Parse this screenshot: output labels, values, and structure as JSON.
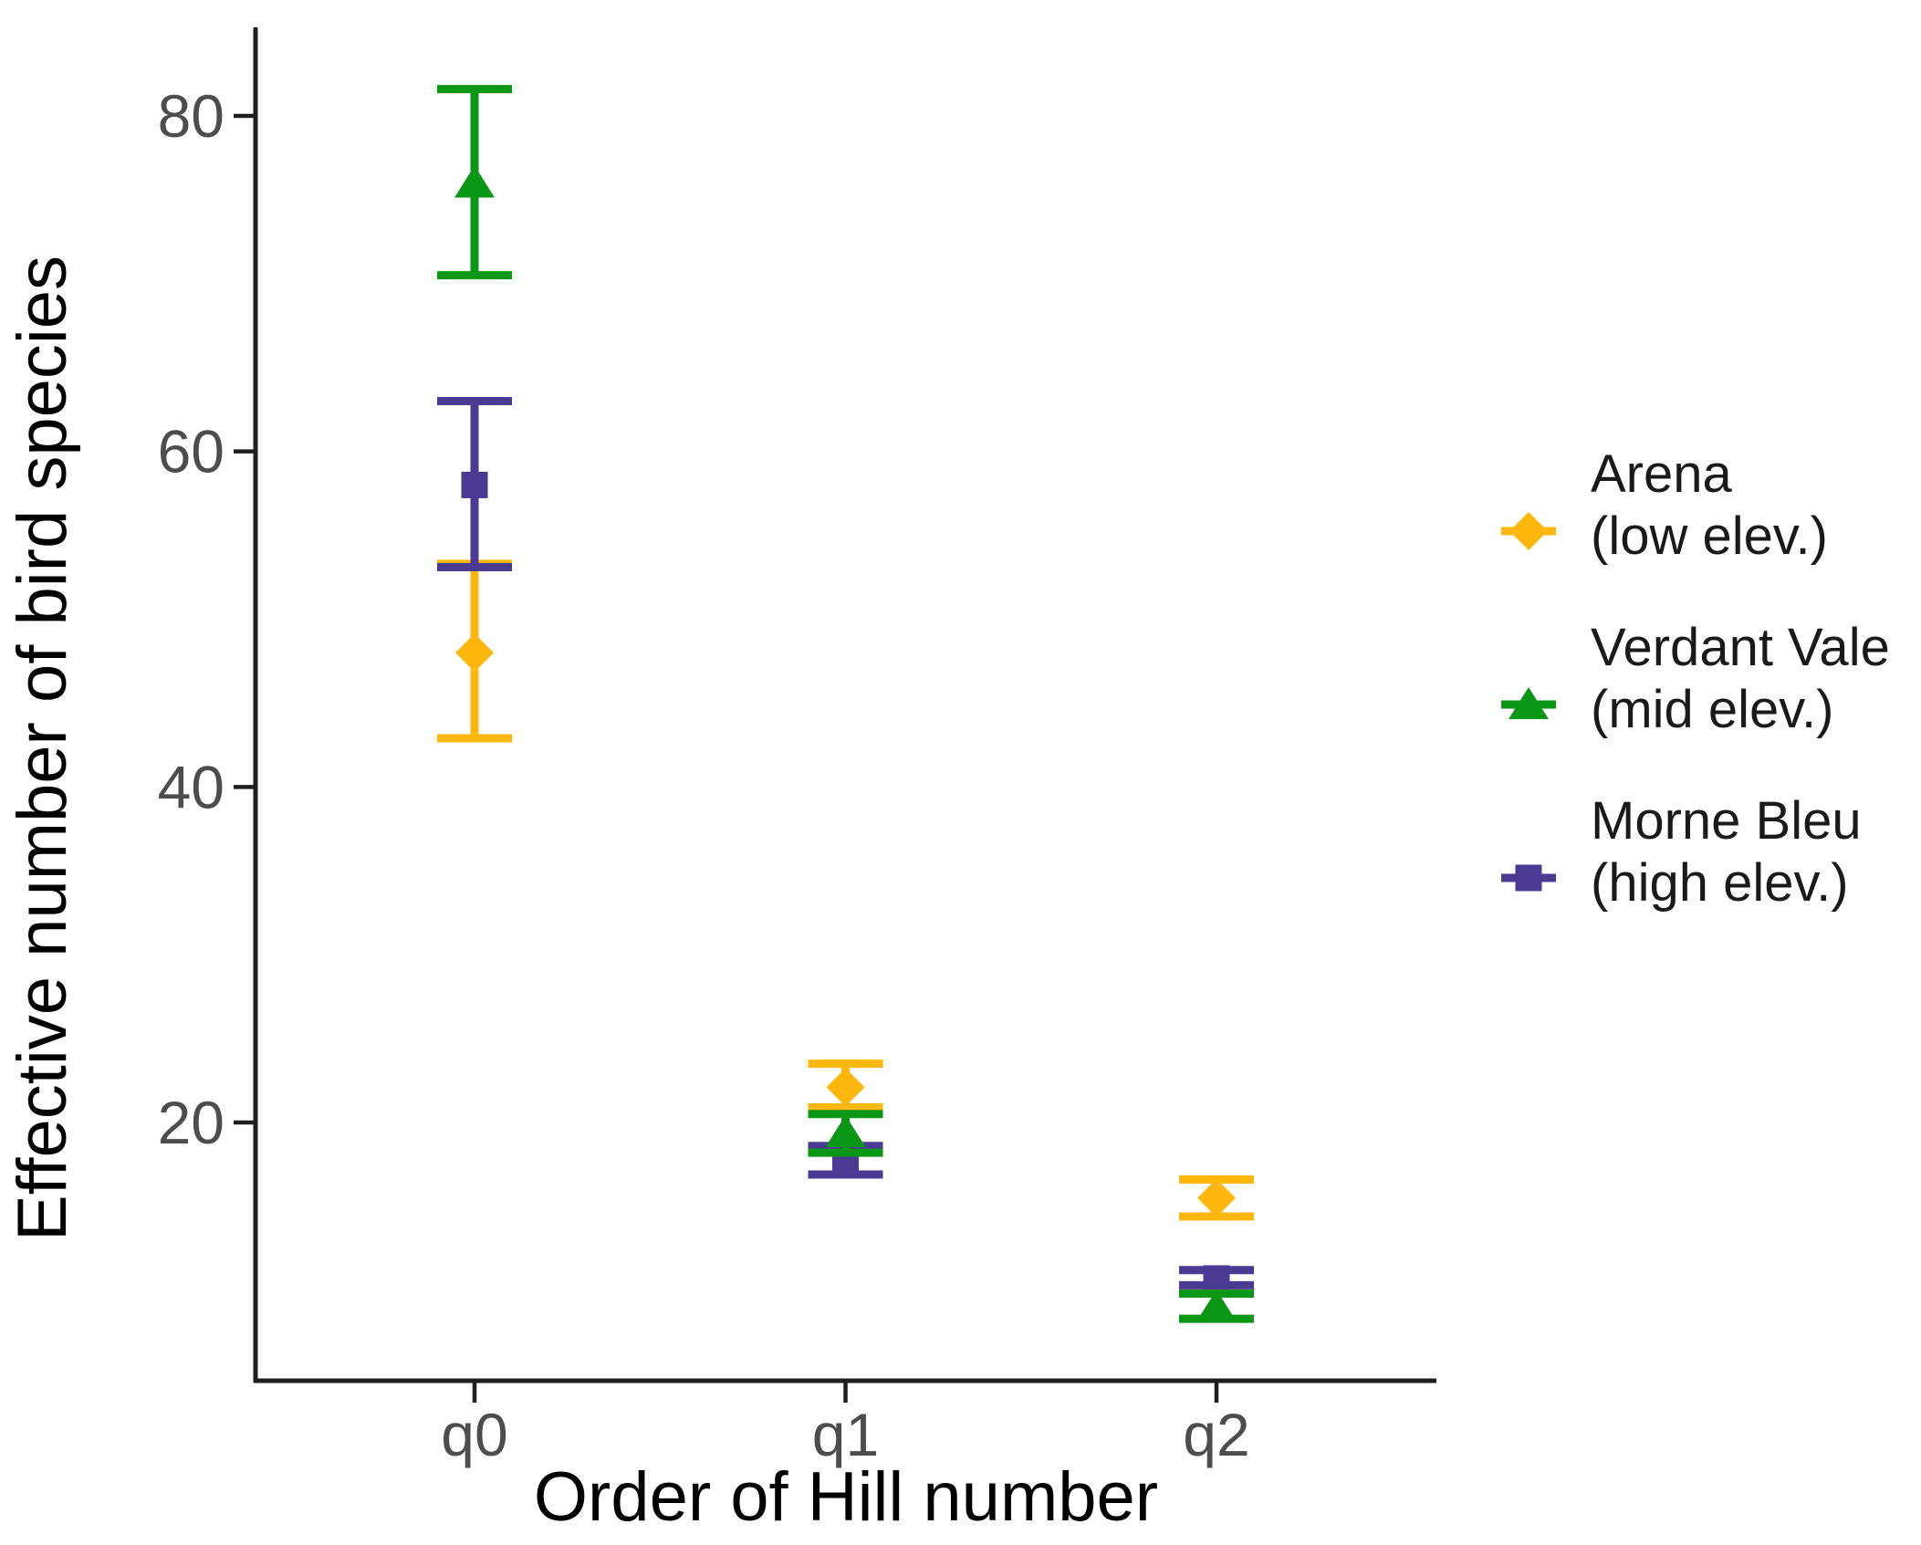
{
  "figure": {
    "background": "#ffffff",
    "axis_line_color": "#1f1f1f",
    "tick_label_color": "#4d4d4d"
  },
  "chart_data": {
    "type": "scatter",
    "subtype": "point-estimates-with-error-bars",
    "title": "",
    "xlabel": "Order of Hill number",
    "ylabel": "Effective number of bird species",
    "categories": [
      "q0",
      "q1",
      "q2"
    ],
    "yticks": [
      20,
      40,
      60,
      80
    ],
    "ylim": [
      4.6,
      85.3
    ],
    "grid": false,
    "legend_position": "right",
    "series": [
      {
        "name": "Arena",
        "elevation_label": "(low elev.)",
        "marker": "diamond",
        "color": "#FDB70D",
        "values": [
          48.0,
          22.1,
          15.5
        ],
        "ci_low": [
          42.9,
          20.9,
          14.4
        ],
        "ci_high": [
          53.3,
          23.5,
          16.6
        ]
      },
      {
        "name": "Verdant Vale",
        "elevation_label": "(mid elev.)",
        "marker": "triangle",
        "color": "#0B9716",
        "values": [
          76.0,
          19.4,
          9.0
        ],
        "ci_low": [
          70.5,
          18.2,
          8.3
        ],
        "ci_high": [
          81.6,
          20.5,
          9.8
        ]
      },
      {
        "name": "Morne Bleu",
        "elevation_label": "(high elev.)",
        "marker": "square",
        "color": "#4B3A94",
        "values": [
          58.0,
          17.6,
          10.7
        ],
        "ci_low": [
          53.1,
          16.9,
          10.3
        ],
        "ci_high": [
          63.0,
          18.6,
          11.2
        ]
      }
    ],
    "draw_order": [
      0,
      2,
      1
    ]
  }
}
